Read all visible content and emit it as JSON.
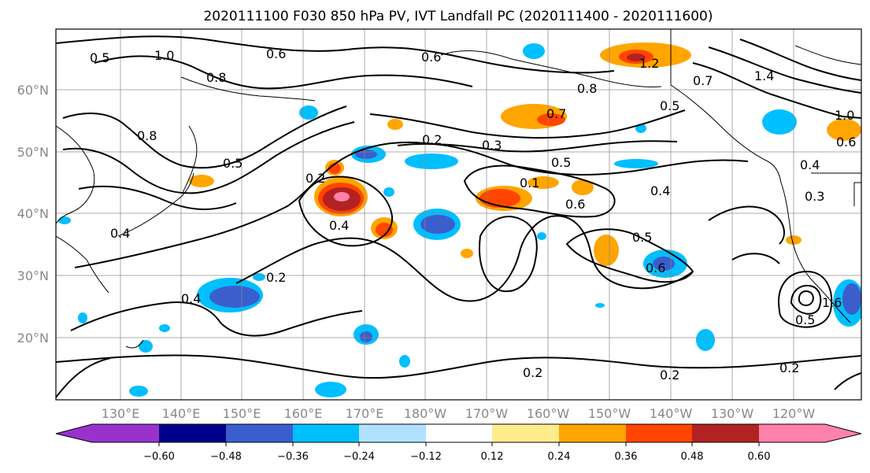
{
  "title": "2020111100 F030 850 hPa PV, IVT Landfall PC (2020111400 - 2020111600)",
  "map": {
    "lat_labels": [
      "60°N",
      "50°N",
      "40°N",
      "30°N",
      "20°N"
    ],
    "lon_labels": [
      "130°E",
      "140°E",
      "150°E",
      "160°E",
      "170°E",
      "180°W",
      "170°W",
      "160°W",
      "150°W",
      "140°W",
      "130°W",
      "120°W"
    ],
    "contour_labels": [
      "1.0",
      "0.5",
      "0.6",
      "0.6",
      "1.2",
      "0.8",
      "0.7",
      "1.4",
      "0.8",
      "0.5",
      "0.7",
      "0.2",
      "0.3",
      "0.5",
      "0.1",
      "0.6",
      "0.4",
      "0.2",
      "0.4",
      "0.5",
      "0.6",
      "0.4",
      "0.2",
      "0.2",
      "0.2",
      "0.5",
      "0.2",
      "1.0",
      "0.6",
      "0.4",
      "0.3",
      "0.8",
      "0.4",
      "1.6",
      "0.5"
    ],
    "colors": {
      "land_outline": "#000000",
      "gridline": "#888888"
    }
  },
  "colorbar": {
    "tick_labels": [
      "−0.60",
      "−0.48",
      "−0.36",
      "−0.24",
      "−0.12",
      "0.12",
      "0.24",
      "0.36",
      "0.48",
      "0.60"
    ],
    "colors": [
      "#9932cc",
      "#00008b",
      "#3a5fcd",
      "#00bfff",
      "#b0e2ff",
      "#ffffff",
      "#ffec8b",
      "#ffa500",
      "#ff4500",
      "#b22222",
      "#ff82ab"
    ]
  }
}
